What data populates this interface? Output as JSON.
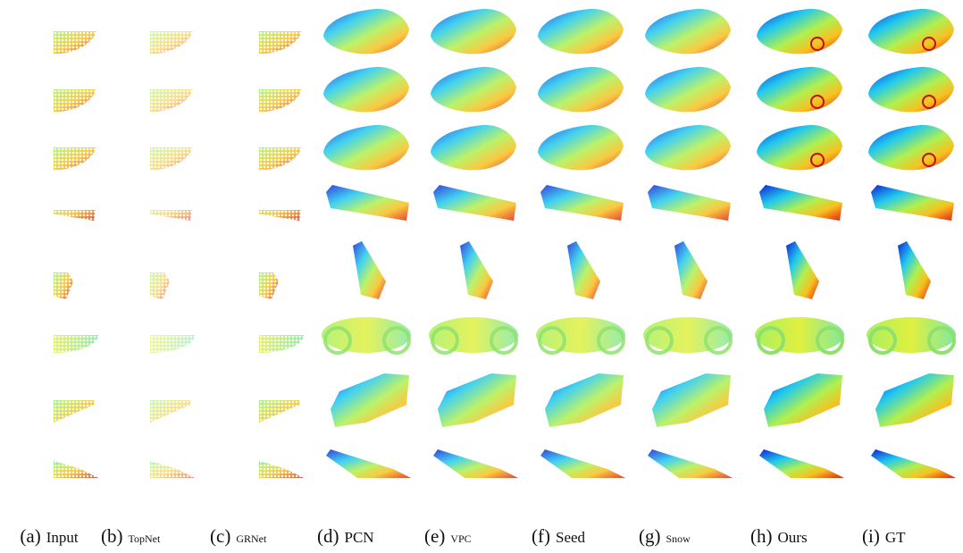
{
  "captions": [
    {
      "label": "(a)",
      "method": "Input"
    },
    {
      "label": "(b)",
      "method": "TopNet"
    },
    {
      "label": "(c)",
      "method": "GRNet"
    },
    {
      "label": "(d)",
      "method": "PCN"
    },
    {
      "label": "(e)",
      "method": "VPC"
    },
    {
      "label": "(f)",
      "method": "Seed"
    },
    {
      "label": "(g)",
      "method": "Snow"
    },
    {
      "label": "(h)",
      "method": "Ours"
    },
    {
      "label": "(i)",
      "method": "GT"
    }
  ]
}
